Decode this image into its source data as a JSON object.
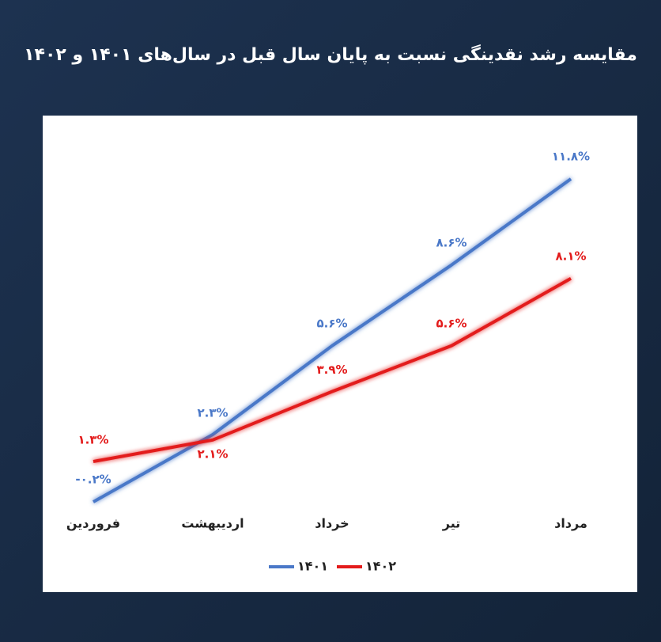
{
  "chart_data": {
    "type": "line",
    "title": "مقایسه رشد نقدینگی نسبت به پایان سال قبل در سال‌های ۱۴۰۱ و ۱۴۰۲",
    "categories": [
      "فروردین",
      "اردیبهشت",
      "خرداد",
      "تیر",
      "مرداد"
    ],
    "series": [
      {
        "name": "۱۴۰۱",
        "color": "#4a78c8",
        "values": [
          -0.2,
          2.3,
          5.6,
          8.6,
          11.8
        ],
        "value_labels": [
          "-۰.۲%",
          "۲.۳%",
          "۵.۶%",
          "۸.۶%",
          "۱۱.۸%"
        ]
      },
      {
        "name": "۱۴۰۲",
        "color": "#e31b1b",
        "values": [
          1.3,
          2.1,
          3.9,
          5.6,
          8.1
        ],
        "value_labels": [
          "۱.۳%",
          "۲.۱%",
          "۳.۹%",
          "۵.۶%",
          "۸.۱%"
        ]
      }
    ]
  }
}
